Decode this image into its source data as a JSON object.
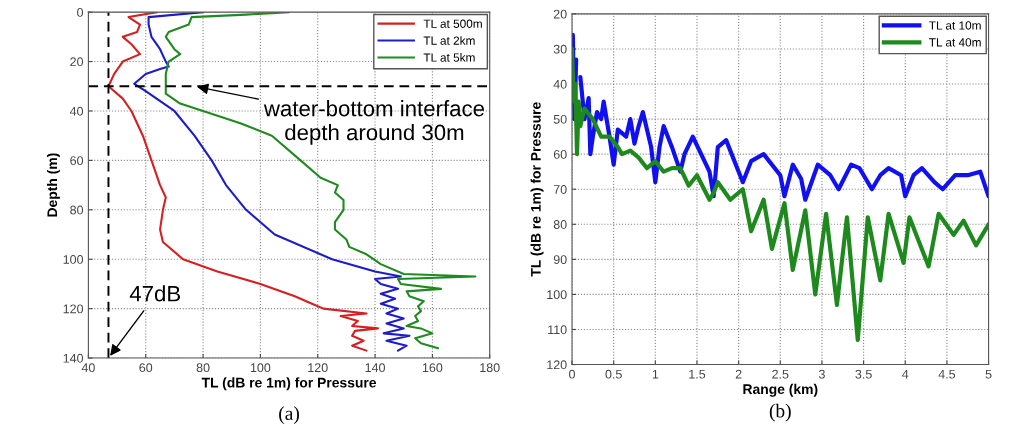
{
  "chart_data": [
    {
      "type": "line",
      "xlabel": "TL (dB re 1m) for Pressure",
      "ylabel": "Depth (m)",
      "xlim": [
        40,
        180
      ],
      "ylim": [
        140,
        0
      ],
      "xticks": [
        40,
        60,
        80,
        100,
        120,
        140,
        160,
        180
      ],
      "yticks": [
        0,
        20,
        40,
        60,
        80,
        100,
        120,
        140
      ],
      "grid": true,
      "legend": "top right",
      "series": [
        {
          "name": "TL at 500m",
          "color": "#d42020",
          "x": [
            64,
            54,
            58,
            57,
            52,
            55,
            58,
            52,
            49,
            47,
            52,
            55,
            59,
            62,
            65,
            67,
            66,
            65,
            66,
            73,
            85,
            100,
            112,
            118,
            122,
            137,
            128,
            134,
            132,
            141,
            133,
            132,
            136,
            132,
            137
          ],
          "values": [
            0,
            2,
            5,
            8,
            10,
            13,
            17,
            20,
            25,
            30,
            35,
            40,
            50,
            60,
            70,
            75,
            80,
            88,
            93,
            100,
            105,
            110,
            115,
            118,
            120,
            122,
            123,
            125,
            127,
            128,
            129,
            131,
            133,
            135,
            137
          ]
        },
        {
          "name": "TL at 2km",
          "color": "#1c1cc8",
          "x": [
            80,
            61,
            61,
            62,
            65,
            67,
            68,
            65,
            60,
            56,
            60,
            70,
            77,
            83,
            88,
            95,
            105,
            125,
            140,
            149,
            140,
            142,
            148,
            142,
            147,
            142,
            148,
            144,
            150,
            144,
            150,
            143,
            152,
            144,
            151,
            148
          ],
          "values": [
            0,
            2,
            5,
            10,
            15,
            20,
            22,
            23,
            25,
            29,
            32,
            40,
            50,
            60,
            70,
            80,
            90,
            100,
            105,
            107,
            108,
            110,
            112,
            114,
            116,
            118,
            120,
            122,
            124,
            126,
            128,
            130,
            131,
            133,
            135,
            137
          ]
        },
        {
          "name": "TL at 5km",
          "color": "#208a20",
          "x": [
            110,
            95,
            76,
            75,
            68,
            67,
            70,
            72,
            68,
            67,
            67,
            72,
            80,
            93,
            104,
            114,
            121,
            127,
            126,
            129,
            129,
            126,
            126,
            130,
            131,
            137,
            142,
            150,
            175,
            148,
            149,
            163,
            151,
            152,
            157,
            155,
            156,
            154,
            155,
            151,
            156,
            160,
            154,
            156,
            162
          ],
          "values": [
            0,
            1,
            2,
            5,
            8,
            10,
            15,
            17,
            20,
            25,
            33,
            37,
            40,
            45,
            50,
            60,
            67,
            70,
            73,
            76,
            80,
            85,
            88,
            92,
            95,
            98,
            102,
            106,
            107,
            108,
            110,
            112,
            113,
            115,
            117,
            119,
            121,
            123,
            125,
            127,
            128,
            130,
            132,
            134,
            136
          ]
        }
      ],
      "ref_lines": [
        {
          "axis": "y",
          "value": 30,
          "color": "#000000",
          "line_style": "dashed"
        },
        {
          "axis": "x",
          "value": 47,
          "color": "#000000",
          "line_style": "dashed"
        }
      ],
      "annotations": [
        {
          "text": "water-bottom interface\ndepth around 30m",
          "x": 77,
          "y": 30
        },
        {
          "text": "47dB",
          "x": 47,
          "y": 140
        },
        "(a)"
      ]
    },
    {
      "type": "line",
      "xlabel": "Range (km)",
      "ylabel": "TL (dB re 1m) for Pressure",
      "xlim": [
        0,
        5
      ],
      "ylim": [
        120,
        20
      ],
      "xticks": [
        0,
        0.5,
        1,
        1.5,
        2,
        2.5,
        3,
        3.5,
        4,
        4.5,
        5
      ],
      "yticks": [
        20,
        30,
        40,
        50,
        60,
        70,
        80,
        90,
        100,
        110,
        120
      ],
      "grid": true,
      "legend": "top right",
      "series": [
        {
          "name": "TL at 10m",
          "color": "#1010f0",
          "x": [
            0,
            0.01,
            0.03,
            0.05,
            0.08,
            0.1,
            0.15,
            0.2,
            0.22,
            0.25,
            0.3,
            0.35,
            0.38,
            0.45,
            0.5,
            0.55,
            0.6,
            0.65,
            0.7,
            0.75,
            0.8,
            0.85,
            0.95,
            1.0,
            1.05,
            1.1,
            1.2,
            1.3,
            1.35,
            1.45,
            1.55,
            1.65,
            1.7,
            1.75,
            1.85,
            1.95,
            2.05,
            2.15,
            2.3,
            2.5,
            2.55,
            2.65,
            2.75,
            2.8,
            2.95,
            3.1,
            3.2,
            3.35,
            3.45,
            3.6,
            3.7,
            3.8,
            3.95,
            4.0,
            4.1,
            4.2,
            4.35,
            4.45,
            4.6,
            4.75,
            4.9,
            5.0
          ],
          "values": [
            45,
            26,
            50,
            33,
            null,
            38,
            50,
            44,
            60,
            55,
            48,
            50,
            45,
            55,
            63,
            53,
            54,
            55,
            50,
            57,
            52,
            48,
            58,
            68,
            58,
            52,
            58,
            65,
            60,
            55,
            60,
            65,
            72,
            58,
            56,
            62,
            68,
            62,
            60,
            66,
            72,
            63,
            67,
            73,
            63,
            66,
            70,
            63,
            64,
            70,
            66,
            64,
            66,
            72,
            66,
            64,
            68,
            70,
            66,
            66,
            65,
            72
          ]
        },
        {
          "name": "TL at 40m",
          "color": "#1e8a1e",
          "x": [
            0,
            0.02,
            0.04,
            0.06,
            0.08,
            0.1,
            0.15,
            0.25,
            0.35,
            0.45,
            0.55,
            0.6,
            0.7,
            0.8,
            0.9,
            1.0,
            1.1,
            1.2,
            1.3,
            1.4,
            1.5,
            1.65,
            1.7,
            1.75,
            1.9,
            2.05,
            2.15,
            2.3,
            2.4,
            2.55,
            2.65,
            2.8,
            2.92,
            3.05,
            3.18,
            3.3,
            3.43,
            3.55,
            3.7,
            3.8,
            3.98,
            4.05,
            4.28,
            4.4,
            4.58,
            4.7,
            4.85,
            5.0
          ],
          "values": [
            30,
            45,
            40,
            60,
            45,
            52,
            47,
            50,
            55,
            55,
            58,
            60,
            59,
            61,
            64,
            62,
            65,
            64,
            64,
            69,
            66,
            73,
            71,
            68,
            73,
            70,
            82,
            73,
            87,
            74,
            93,
            76,
            100,
            77,
            103,
            78,
            113,
            78,
            96,
            77,
            91,
            78,
            92,
            77,
            83,
            79,
            86,
            80
          ]
        }
      ],
      "annotations": [
        "(b)"
      ]
    }
  ]
}
